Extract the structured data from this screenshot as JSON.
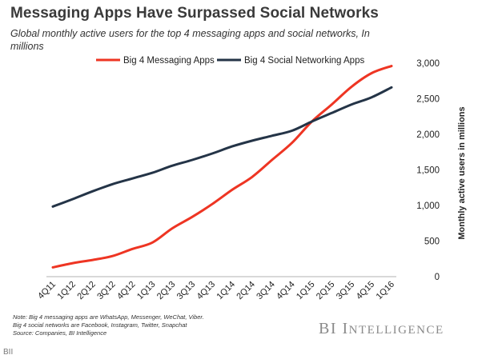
{
  "header": {
    "title": "Messaging Apps Have Surpassed Social Networks",
    "subtitle": "Global monthly active users for the top 4 messaging apps and social networks, In millions"
  },
  "notes": [
    "Note: Big 4 messaging apps are WhatsApp, Messenger, WeChat, Viber.",
    "Big 4 social networks are Facebook, Instagram, Twitter, Snapchat",
    "Source: Companies, BI Intelligence"
  ],
  "brand": {
    "first": "BI",
    "rest_initial": "I",
    "rest": "NTELLIGENCE"
  },
  "credit": "BII",
  "chart_data": {
    "type": "line",
    "categories": [
      "4Q11",
      "1Q12",
      "2Q12",
      "3Q12",
      "4Q12",
      "1Q13",
      "2Q13",
      "3Q13",
      "4Q13",
      "1Q14",
      "2Q14",
      "3Q14",
      "4Q14",
      "1Q15",
      "2Q15",
      "3Q15",
      "4Q15",
      "1Q16"
    ],
    "series": [
      {
        "name": "Big 4 Messaging Apps",
        "color": "#ee3523",
        "values": [
          130,
          190,
          235,
          290,
          390,
          480,
          680,
          840,
          1020,
          1220,
          1400,
          1640,
          1880,
          2180,
          2420,
          2670,
          2860,
          2960
        ]
      },
      {
        "name": "Big 4 Social Networking Apps",
        "color": "#243447",
        "values": [
          985,
          1090,
          1200,
          1300,
          1380,
          1460,
          1560,
          1640,
          1730,
          1830,
          1910,
          1980,
          2050,
          2180,
          2300,
          2420,
          2520,
          2660
        ]
      }
    ],
    "ylabel": "Monthly active users in millions",
    "ylim": [
      0,
      3000
    ],
    "yticks": [
      0,
      500,
      1000,
      1500,
      2000,
      2500,
      3000
    ],
    "ytick_labels": [
      "0",
      "500",
      "1,000",
      "1,500",
      "2,000",
      "2,500",
      "3,000"
    ],
    "y_axis_position": "right",
    "grid": false,
    "legend": "top-left"
  }
}
